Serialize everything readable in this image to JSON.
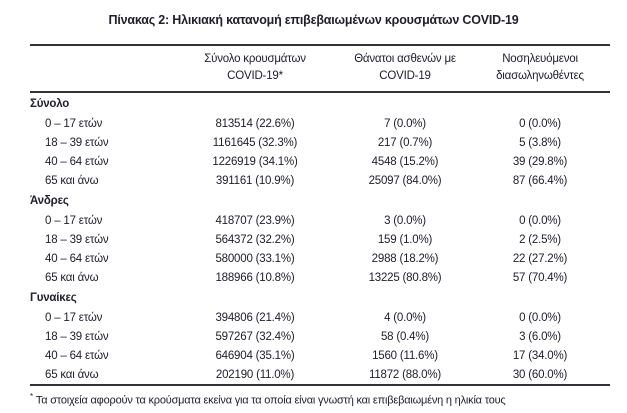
{
  "title": "Πίνακας 2: Ηλικιακή κατανομή επιβεβαιωμένων κρουσμάτων COVID-19",
  "table": {
    "header": {
      "cases_line1": "Σύνολο κρουσμάτων",
      "cases_line2": "COVID-19*",
      "deaths_line1": "Θάνατοι ασθενών με",
      "deaths_line2": "COVID-19",
      "intubated_line1": "Νοσηλευόμενοι",
      "intubated_line2": "διασωληνωθέντες"
    },
    "sections": [
      {
        "label": "Σύνολο",
        "rows": [
          {
            "age": "0 – 17 ετών",
            "cases": "813514 (22.6%)",
            "deaths": "7 (0.0%)",
            "intubated": "0 (0.0%)"
          },
          {
            "age": "18 – 39 ετών",
            "cases": "1161645 (32.3%)",
            "deaths": "217 (0.7%)",
            "intubated": "5 (3.8%)"
          },
          {
            "age": "40 – 64 ετών",
            "cases": "1226919 (34.1%)",
            "deaths": "4548 (15.2%)",
            "intubated": "39 (29.8%)"
          },
          {
            "age": "65 και άνω",
            "cases": "391161 (10.9%)",
            "deaths": "25097 (84.0%)",
            "intubated": "87 (66.4%)"
          }
        ]
      },
      {
        "label": "Άνδρες",
        "rows": [
          {
            "age": "0 – 17 ετών",
            "cases": "418707 (23.9%)",
            "deaths": "3 (0.0%)",
            "intubated": "0 (0.0%)"
          },
          {
            "age": "18 – 39 ετών",
            "cases": "564372 (32.2%)",
            "deaths": "159 (1.0%)",
            "intubated": "2 (2.5%)"
          },
          {
            "age": "40 – 64 ετών",
            "cases": "580000 (33.1%)",
            "deaths": "2988 (18.2%)",
            "intubated": "22 (27.2%)"
          },
          {
            "age": "65 και άνω",
            "cases": "188966 (10.8%)",
            "deaths": "13225 (80.8%)",
            "intubated": "57 (70.4%)"
          }
        ]
      },
      {
        "label": "Γυναίκες",
        "rows": [
          {
            "age": "0 – 17 ετών",
            "cases": "394806 (21.4%)",
            "deaths": "4 (0.0%)",
            "intubated": "0 (0.0%)"
          },
          {
            "age": "18 – 39 ετών",
            "cases": "597267 (32.4%)",
            "deaths": "58 (0.4%)",
            "intubated": "3 (6.0%)"
          },
          {
            "age": "40 – 64 ετών",
            "cases": "646904 (35.1%)",
            "deaths": "1560 (11.6%)",
            "intubated": "17 (34.0%)"
          },
          {
            "age": "65 και άνω",
            "cases": "202190 (11.0%)",
            "deaths": "11872 (88.0%)",
            "intubated": "30 (60.0%)"
          }
        ]
      }
    ]
  },
  "footnote": {
    "marker": "*",
    "text": "Τα στοιχεία αφορούν τα κρούσματα εκείνα για τα οποία είναι γνωστή και επιβεβαιωμένη η ηλικία τους"
  },
  "colors": {
    "text": "#20202f",
    "rule": "#32323c",
    "background": "#ffffff"
  }
}
